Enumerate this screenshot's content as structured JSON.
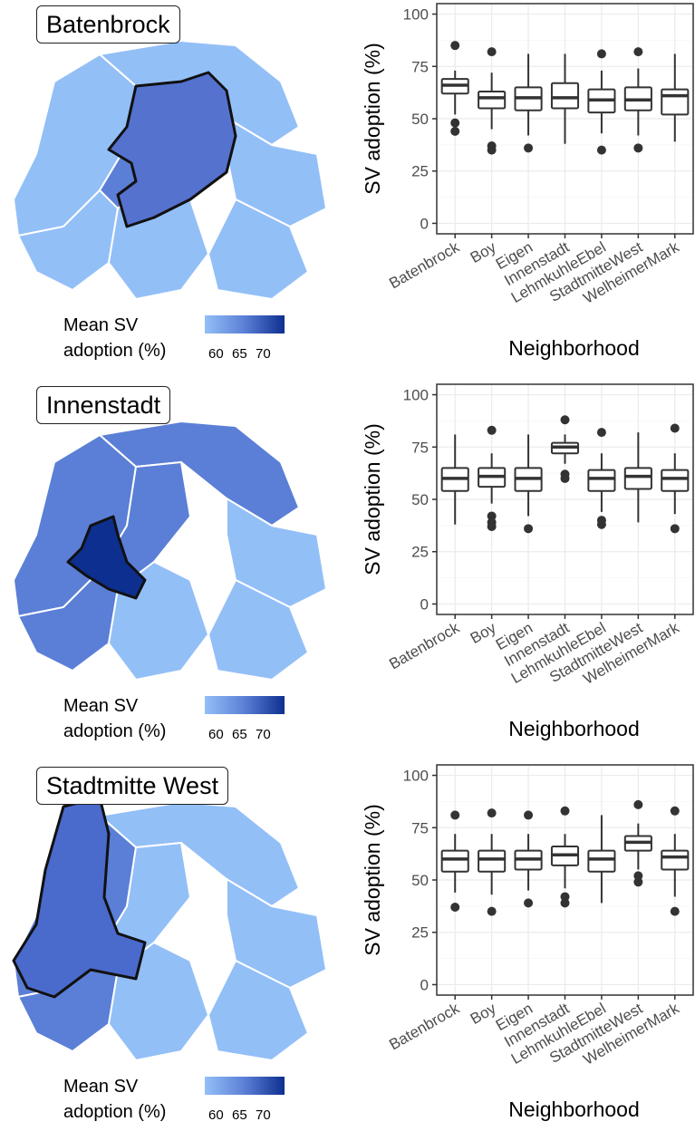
{
  "colors": {
    "map_low": "#93bff7",
    "map_mid": "#5b7fd6",
    "map_high": "#0d2f8f",
    "outline": "#111111",
    "box_stroke": "#333333",
    "grid": "#ebebeb",
    "panel_border": "#333333"
  },
  "legend": {
    "title_line1": "Mean SV",
    "title_line2": "adoption (%)",
    "ticks": [
      "60",
      "65",
      "70"
    ]
  },
  "panels": [
    {
      "title": "Batenbrock"
    },
    {
      "title": "Innenstadt"
    },
    {
      "title": "Stadtmitte West"
    }
  ],
  "chart_data": [
    {
      "type": "box",
      "title": "",
      "xlabel": "Neighborhood",
      "ylabel": "SV adoption (%)",
      "ylim": [
        0,
        100
      ],
      "yticks": [
        0,
        25,
        50,
        75,
        100
      ],
      "grid": true,
      "categories": [
        "Batenbrock",
        "Boy",
        "Eigen",
        "Innenstadt",
        "LehmkuhleEbel",
        "StadtmitteWest",
        "WelheimerMark"
      ],
      "boxes": [
        {
          "lower": 52,
          "q1": 62,
          "median": 66,
          "q3": 69,
          "upper": 73,
          "outliers": [
            85,
            48,
            44
          ]
        },
        {
          "lower": 45,
          "q1": 55,
          "median": 60,
          "q3": 63,
          "upper": 72,
          "outliers": [
            82,
            37,
            35
          ]
        },
        {
          "lower": 42,
          "q1": 54,
          "median": 60,
          "q3": 65,
          "upper": 81,
          "outliers": [
            36
          ]
        },
        {
          "lower": 38,
          "q1": 55,
          "median": 60,
          "q3": 67,
          "upper": 81,
          "outliers": []
        },
        {
          "lower": 43,
          "q1": 53,
          "median": 59,
          "q3": 64,
          "upper": 73,
          "outliers": [
            81,
            35
          ]
        },
        {
          "lower": 42,
          "q1": 54,
          "median": 59,
          "q3": 65,
          "upper": 74,
          "outliers": [
            82,
            36
          ]
        },
        {
          "lower": 39,
          "q1": 52,
          "median": 61,
          "q3": 64,
          "upper": 81,
          "outliers": []
        }
      ]
    },
    {
      "type": "box",
      "title": "",
      "xlabel": "Neighborhood",
      "ylabel": "SV adoption (%)",
      "ylim": [
        0,
        100
      ],
      "yticks": [
        0,
        25,
        50,
        75,
        100
      ],
      "grid": true,
      "categories": [
        "Batenbrock",
        "Boy",
        "Eigen",
        "Innenstadt",
        "LehmkuhleEbel",
        "StadtmitteWest",
        "WelheimerMark"
      ],
      "boxes": [
        {
          "lower": 38,
          "q1": 54,
          "median": 60,
          "q3": 65,
          "upper": 81,
          "outliers": []
        },
        {
          "lower": 48,
          "q1": 56,
          "median": 61,
          "q3": 65,
          "upper": 72,
          "outliers": [
            83,
            42,
            39,
            37
          ]
        },
        {
          "lower": 42,
          "q1": 54,
          "median": 60,
          "q3": 65,
          "upper": 81,
          "outliers": [
            36
          ]
        },
        {
          "lower": 67,
          "q1": 72,
          "median": 75,
          "q3": 77,
          "upper": 81,
          "outliers": [
            88,
            62,
            60
          ]
        },
        {
          "lower": 44,
          "q1": 54,
          "median": 60,
          "q3": 64,
          "upper": 72,
          "outliers": [
            82,
            40,
            38
          ]
        },
        {
          "lower": 39,
          "q1": 55,
          "median": 61,
          "q3": 65,
          "upper": 82,
          "outliers": []
        },
        {
          "lower": 43,
          "q1": 54,
          "median": 60,
          "q3": 64,
          "upper": 72,
          "outliers": [
            84,
            36
          ]
        }
      ]
    },
    {
      "type": "box",
      "title": "",
      "xlabel": "Neighborhood",
      "ylabel": "SV adoption (%)",
      "ylim": [
        0,
        100
      ],
      "yticks": [
        0,
        25,
        50,
        75,
        100
      ],
      "grid": true,
      "categories": [
        "Batenbrock",
        "Boy",
        "Eigen",
        "Innenstadt",
        "LehmkuhleEbel",
        "StadtmitteWest",
        "WelheimerMark"
      ],
      "boxes": [
        {
          "lower": 44,
          "q1": 54,
          "median": 60,
          "q3": 64,
          "upper": 72,
          "outliers": [
            81,
            37
          ]
        },
        {
          "lower": 43,
          "q1": 54,
          "median": 60,
          "q3": 64,
          "upper": 72,
          "outliers": [
            82,
            35
          ]
        },
        {
          "lower": 45,
          "q1": 55,
          "median": 60,
          "q3": 64,
          "upper": 72,
          "outliers": [
            81,
            39
          ]
        },
        {
          "lower": 46,
          "q1": 57,
          "median": 62,
          "q3": 66,
          "upper": 72,
          "outliers": [
            83,
            42,
            39
          ]
        },
        {
          "lower": 39,
          "q1": 54,
          "median": 60,
          "q3": 64,
          "upper": 81,
          "outliers": []
        },
        {
          "lower": 55,
          "q1": 64,
          "median": 68,
          "q3": 71,
          "upper": 77,
          "outliers": [
            86,
            52,
            49
          ]
        },
        {
          "lower": 42,
          "q1": 55,
          "median": 61,
          "q3": 64,
          "upper": 72,
          "outliers": [
            83,
            35
          ]
        }
      ]
    }
  ]
}
